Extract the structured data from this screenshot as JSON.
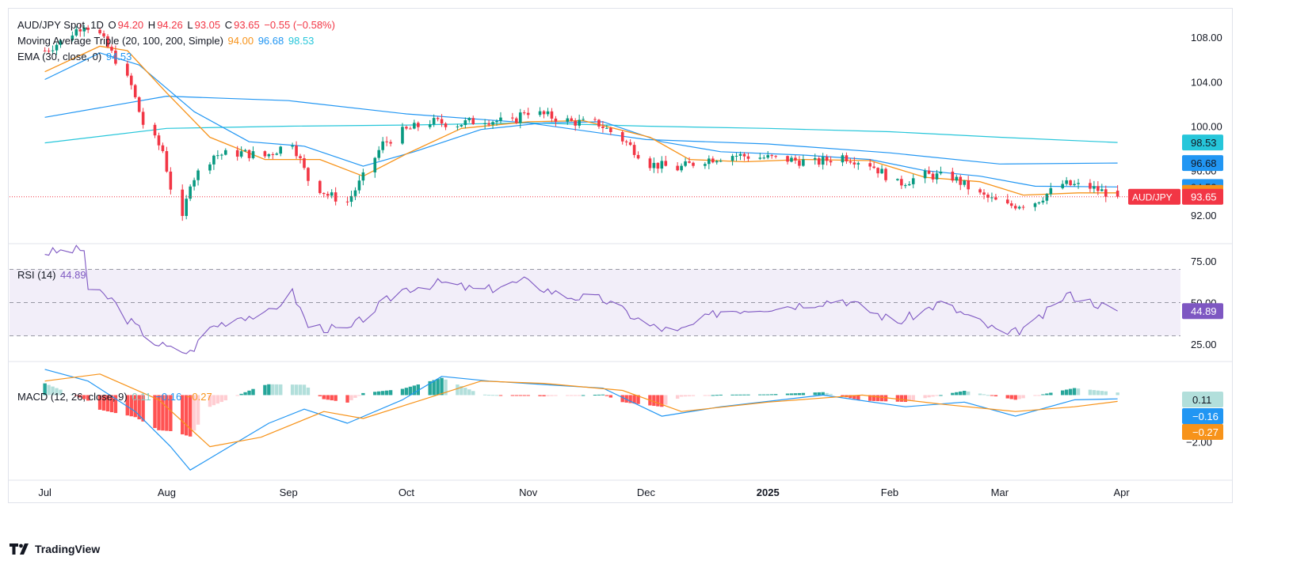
{
  "header": {
    "symbol": "AUD/JPY Spot, 1D",
    "open_label": "O",
    "open": "94.20",
    "high_label": "H",
    "high": "94.26",
    "low_label": "L",
    "low": "93.05",
    "close_label": "C",
    "close": "93.65",
    "change": "−0.55 (−0.58%)"
  },
  "indicators": {
    "ma_label": "Moving Average Triple (20, 100, 200, Simple)",
    "ma20": "94.00",
    "ma100": "96.68",
    "ma200": "98.53",
    "ema_label": "EMA (30, close, 0)",
    "ema": "94.53",
    "rsi_label": "RSI (14)",
    "rsi": "44.89",
    "macd_label": "MACD (12, 26, close, 9)",
    "macd_hist": "0.11",
    "macd": "−0.16",
    "macd_signal": "−0.27"
  },
  "colors": {
    "up": "#089981",
    "down": "#f23645",
    "ma20": "#f7931a",
    "ma100": "#2196f3",
    "ma200": "#26c6da",
    "ema": "#2196f3",
    "rsi": "#7e57c2",
    "hist_up": "#26a69a",
    "hist_up_light": "#b2dfdb",
    "hist_down": "#ff5252",
    "hist_down_light": "#ffcdd2"
  },
  "branding": {
    "name": "TradingView",
    "logo": "tradingview-logo-icon"
  },
  "chart_data": [
    {
      "type": "candlestick",
      "title": "AUD/JPY Spot, 1D",
      "x_tick_labels": [
        "Jul",
        "Aug",
        "Sep",
        "Oct",
        "Nov",
        "Dec",
        "2025",
        "Feb",
        "Mar",
        "Apr"
      ],
      "y_ticks": [
        92.0,
        96.0,
        100.0,
        104.0,
        108.0
      ],
      "ylim": [
        89.5,
        110.5
      ],
      "price_labels": [
        {
          "text": "98.53",
          "value": 98.53,
          "series": "ma200"
        },
        {
          "text": "96.68",
          "value": 96.68,
          "series": "ma100"
        },
        {
          "text": "94.53",
          "value": 94.53,
          "series": "ema"
        },
        {
          "text": "94.00",
          "value": 94.0,
          "series": "ma20"
        },
        {
          "text": "93.65",
          "value": 93.65,
          "series": "close"
        }
      ],
      "symbol_badge": "AUD/JPY",
      "last_close": 93.65,
      "price_path": [
        [
          "2024-07-01",
          106.8
        ],
        [
          "2024-07-05",
          107.6
        ],
        [
          "2024-07-11",
          109.2
        ],
        [
          "2024-07-15",
          108.2
        ],
        [
          "2024-07-19",
          106.0
        ],
        [
          "2024-07-23",
          103.6
        ],
        [
          "2024-07-26",
          100.2
        ],
        [
          "2024-07-31",
          97.8
        ],
        [
          "2024-08-02",
          94.5
        ],
        [
          "2024-08-05",
          91.5
        ],
        [
          "2024-08-07",
          95.0
        ],
        [
          "2024-08-13",
          97.4
        ],
        [
          "2024-08-20",
          97.6
        ],
        [
          "2024-08-26",
          97.3
        ],
        [
          "2024-09-02",
          98.6
        ],
        [
          "2024-09-06",
          95.2
        ],
        [
          "2024-09-11",
          93.8
        ],
        [
          "2024-09-16",
          93.2
        ],
        [
          "2024-09-20",
          95.4
        ],
        [
          "2024-09-25",
          98.4
        ],
        [
          "2024-09-30",
          99.5
        ],
        [
          "2024-10-07",
          100.4
        ],
        [
          "2024-10-14",
          100.2
        ],
        [
          "2024-10-21",
          100.6
        ],
        [
          "2024-10-28",
          100.3
        ],
        [
          "2024-10-31",
          101.4
        ],
        [
          "2024-11-05",
          101.0
        ],
        [
          "2024-11-12",
          100.4
        ],
        [
          "2024-11-19",
          100.2
        ],
        [
          "2024-11-25",
          98.8
        ],
        [
          "2024-12-02",
          96.6
        ],
        [
          "2024-12-09",
          96.2
        ],
        [
          "2024-12-16",
          97.0
        ],
        [
          "2024-12-23",
          97.4
        ],
        [
          "2024-12-30",
          97.2
        ],
        [
          "2025-01-06",
          97.0
        ],
        [
          "2025-01-13",
          96.7
        ],
        [
          "2025-01-20",
          97.3
        ],
        [
          "2025-01-27",
          96.6
        ],
        [
          "2025-02-03",
          94.8
        ],
        [
          "2025-02-10",
          95.6
        ],
        [
          "2025-02-17",
          95.4
        ],
        [
          "2025-02-24",
          93.8
        ],
        [
          "2025-03-03",
          92.8
        ],
        [
          "2025-03-10",
          93.2
        ],
        [
          "2025-03-17",
          94.8
        ],
        [
          "2025-03-24",
          94.5
        ],
        [
          "2025-03-31",
          93.65
        ]
      ],
      "ma20_path": [
        [
          "2024-07-01",
          104.9
        ],
        [
          "2024-07-15",
          107.2
        ],
        [
          "2024-07-22",
          106.8
        ],
        [
          "2024-08-01",
          103.0
        ],
        [
          "2024-08-12",
          99.0
        ],
        [
          "2024-08-26",
          97.0
        ],
        [
          "2024-09-09",
          97.0
        ],
        [
          "2024-09-20",
          95.5
        ],
        [
          "2024-10-01",
          97.5
        ],
        [
          "2024-10-15",
          99.8
        ],
        [
          "2024-11-01",
          100.4
        ],
        [
          "2024-11-15",
          100.5
        ],
        [
          "2024-12-02",
          99.0
        ],
        [
          "2024-12-12",
          97.0
        ],
        [
          "2024-12-26",
          96.8
        ],
        [
          "2025-01-10",
          97.0
        ],
        [
          "2025-01-27",
          96.9
        ],
        [
          "2025-02-10",
          95.4
        ],
        [
          "2025-02-24",
          95.0
        ],
        [
          "2025-03-07",
          93.8
        ],
        [
          "2025-03-21",
          94.0
        ],
        [
          "2025-03-31",
          94.0
        ]
      ],
      "ma100_path": [
        [
          "2024-07-01",
          100.8
        ],
        [
          "2024-08-01",
          102.7
        ],
        [
          "2024-09-01",
          102.3
        ],
        [
          "2024-10-01",
          101.1
        ],
        [
          "2024-11-01",
          100.3
        ],
        [
          "2024-12-01",
          98.8
        ],
        [
          "2025-01-01",
          98.4
        ],
        [
          "2025-02-01",
          97.6
        ],
        [
          "2025-03-01",
          96.6
        ],
        [
          "2025-03-31",
          96.68
        ]
      ],
      "ma200_path": [
        [
          "2024-07-01",
          98.5
        ],
        [
          "2024-08-01",
          99.8
        ],
        [
          "2024-09-01",
          100.0
        ],
        [
          "2024-10-01",
          100.1
        ],
        [
          "2024-11-01",
          100.3
        ],
        [
          "2024-12-01",
          100.0
        ],
        [
          "2025-01-01",
          99.8
        ],
        [
          "2025-02-01",
          99.5
        ],
        [
          "2025-03-01",
          99.0
        ],
        [
          "2025-03-31",
          98.53
        ]
      ],
      "ema_path": [
        [
          "2024-07-01",
          104.2
        ],
        [
          "2024-07-15",
          106.6
        ],
        [
          "2024-07-25",
          105.5
        ],
        [
          "2024-08-08",
          101.3
        ],
        [
          "2024-08-22",
          98.6
        ],
        [
          "2024-09-05",
          98.2
        ],
        [
          "2024-09-20",
          96.4
        ],
        [
          "2024-10-03",
          97.7
        ],
        [
          "2024-10-20",
          99.7
        ],
        [
          "2024-11-05",
          100.3
        ],
        [
          "2024-11-20",
          100.4
        ],
        [
          "2024-12-05",
          98.6
        ],
        [
          "2024-12-20",
          97.7
        ],
        [
          "2025-01-10",
          97.4
        ],
        [
          "2025-01-27",
          97.0
        ],
        [
          "2025-02-10",
          96.0
        ],
        [
          "2025-02-24",
          95.5
        ],
        [
          "2025-03-10",
          94.6
        ],
        [
          "2025-03-31",
          94.53
        ]
      ]
    },
    {
      "type": "line",
      "title": "RSI (14)",
      "y_ticks": [
        25.0,
        50.0,
        75.0
      ],
      "ylim": [
        15,
        85
      ],
      "band": [
        30,
        70
      ],
      "last_value": 44.89,
      "rsi_path": [
        [
          "2024-07-01",
          80
        ],
        [
          "2024-07-11",
          82
        ],
        [
          "2024-07-12",
          58
        ],
        [
          "2024-07-18",
          52
        ],
        [
          "2024-07-22",
          40
        ],
        [
          "2024-07-29",
          26
        ],
        [
          "2024-08-02",
          22
        ],
        [
          "2024-08-07",
          20
        ],
        [
          "2024-08-12",
          35
        ],
        [
          "2024-08-20",
          42
        ],
        [
          "2024-08-26",
          42
        ],
        [
          "2024-09-02",
          56
        ],
        [
          "2024-09-06",
          36
        ],
        [
          "2024-09-16",
          33
        ],
        [
          "2024-09-24",
          48
        ],
        [
          "2024-09-30",
          58
        ],
        [
          "2024-10-10",
          62
        ],
        [
          "2024-10-20",
          57
        ],
        [
          "2024-10-31",
          63
        ],
        [
          "2024-11-10",
          54
        ],
        [
          "2024-11-20",
          52
        ],
        [
          "2024-12-02",
          36
        ],
        [
          "2024-12-09",
          32
        ],
        [
          "2024-12-20",
          45
        ],
        [
          "2025-01-06",
          48
        ],
        [
          "2025-01-20",
          52
        ],
        [
          "2025-02-03",
          38
        ],
        [
          "2025-02-14",
          50
        ],
        [
          "2025-02-24",
          38
        ],
        [
          "2025-03-03",
          30
        ],
        [
          "2025-03-10",
          38
        ],
        [
          "2025-03-18",
          55
        ],
        [
          "2025-03-25",
          50
        ],
        [
          "2025-03-31",
          44.89
        ]
      ]
    },
    {
      "type": "bar",
      "title": "MACD (12, 26, close, 9)",
      "y_ticks": [
        -2.0
      ],
      "ylim": [
        -3.6,
        1.4
      ],
      "last_values": {
        "histogram": 0.11,
        "macd": -0.16,
        "signal": -0.27
      },
      "macd_path": [
        [
          "2024-07-01",
          1.1
        ],
        [
          "2024-07-12",
          0.6
        ],
        [
          "2024-07-24",
          -0.7
        ],
        [
          "2024-08-02",
          -2.2
        ],
        [
          "2024-08-07",
          -3.2
        ],
        [
          "2024-08-15",
          -2.4
        ],
        [
          "2024-08-27",
          -1.2
        ],
        [
          "2024-09-05",
          -0.6
        ],
        [
          "2024-09-16",
          -1.2
        ],
        [
          "2024-09-30",
          -0.2
        ],
        [
          "2024-10-10",
          0.8
        ],
        [
          "2024-10-22",
          0.6
        ],
        [
          "2024-11-05",
          0.45
        ],
        [
          "2024-11-20",
          0.3
        ],
        [
          "2024-12-05",
          -0.9
        ],
        [
          "2024-12-20",
          -0.5
        ],
        [
          "2025-01-15",
          0.0
        ],
        [
          "2025-02-05",
          -0.5
        ],
        [
          "2025-02-20",
          -0.3
        ],
        [
          "2025-03-05",
          -0.9
        ],
        [
          "2025-03-20",
          -0.2
        ],
        [
          "2025-03-31",
          -0.16
        ]
      ],
      "signal_path": [
        [
          "2024-07-01",
          0.6
        ],
        [
          "2024-07-15",
          0.9
        ],
        [
          "2024-07-30",
          -0.2
        ],
        [
          "2024-08-12",
          -2.2
        ],
        [
          "2024-08-25",
          -1.8
        ],
        [
          "2024-09-10",
          -0.7
        ],
        [
          "2024-09-20",
          -1.0
        ],
        [
          "2024-10-05",
          -0.2
        ],
        [
          "2024-10-20",
          0.6
        ],
        [
          "2024-11-05",
          0.5
        ],
        [
          "2024-11-25",
          0.2
        ],
        [
          "2024-12-10",
          -0.7
        ],
        [
          "2025-01-01",
          -0.3
        ],
        [
          "2025-01-25",
          0.0
        ],
        [
          "2025-02-15",
          -0.4
        ],
        [
          "2025-03-05",
          -0.7
        ],
        [
          "2025-03-20",
          -0.5
        ],
        [
          "2025-03-31",
          -0.27
        ]
      ]
    }
  ]
}
